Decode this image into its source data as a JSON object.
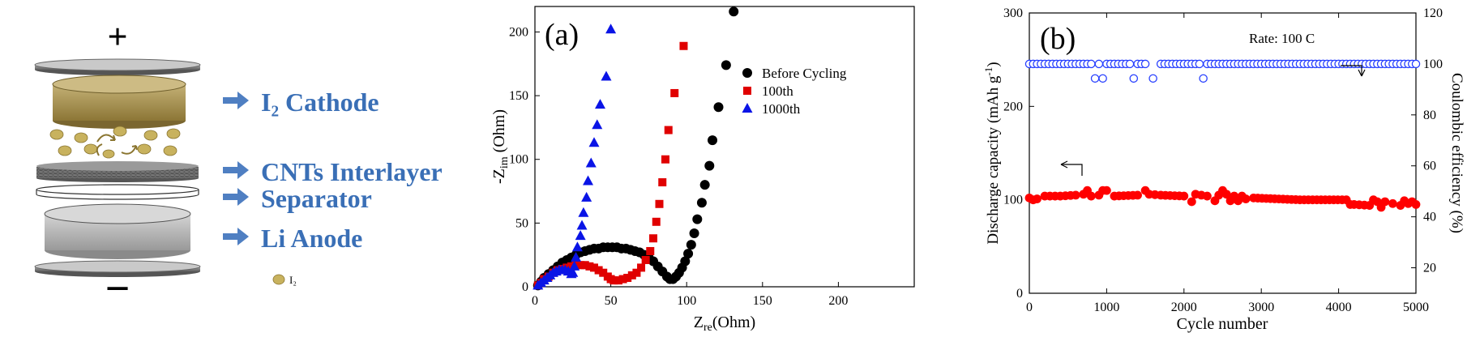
{
  "schematic": {
    "plus": "+",
    "minus": "−",
    "labels": {
      "cathode": "I₂ Cathode",
      "interlayer": "CNTs Interlayer",
      "separator": "Separator",
      "anode": "Li  Anode"
    },
    "legend_i2": "I₂",
    "colors": {
      "label": "#3a6fb6",
      "arrow": "#4f7fc2",
      "cathode": "#a08c4a",
      "iodine": "#c8b25e",
      "anode": "#b5b5b5"
    }
  },
  "chart_data": [
    {
      "type": "scatter",
      "panel_label": "(a)",
      "xlabel": "Z_re(Ohm)",
      "ylabel": "-Z_im (Ohm)",
      "xlim": [
        0,
        250
      ],
      "ylim": [
        0,
        220
      ],
      "xticks": [
        0,
        50,
        100,
        150,
        200
      ],
      "yticks": [
        0,
        50,
        100,
        150,
        200
      ],
      "legend_position": "top-right",
      "series": [
        {
          "name": "Before Cycling",
          "color": "#000000",
          "marker": "circle",
          "points": [
            [
              2,
              1
            ],
            [
              4,
              4
            ],
            [
              6,
              7
            ],
            [
              9,
              10
            ],
            [
              12,
              13
            ],
            [
              15,
              16
            ],
            [
              18,
              19
            ],
            [
              21,
              21
            ],
            [
              24,
              23
            ],
            [
              27,
              25
            ],
            [
              30,
              27
            ],
            [
              33,
              28
            ],
            [
              36,
              29
            ],
            [
              39,
              30
            ],
            [
              42,
              30
            ],
            [
              45,
              31
            ],
            [
              48,
              31
            ],
            [
              51,
              31
            ],
            [
              54,
              31
            ],
            [
              57,
              30
            ],
            [
              60,
              30
            ],
            [
              63,
              29
            ],
            [
              66,
              28
            ],
            [
              69,
              27
            ],
            [
              72,
              25
            ],
            [
              75,
              23
            ],
            [
              78,
              20
            ],
            [
              81,
              16
            ],
            [
              84,
              12
            ],
            [
              87,
              8
            ],
            [
              89,
              6
            ],
            [
              91,
              6
            ],
            [
              93,
              8
            ],
            [
              95,
              11
            ],
            [
              97,
              15
            ],
            [
              99,
              20
            ],
            [
              101,
              26
            ],
            [
              103,
              33
            ],
            [
              105,
              42
            ],
            [
              107,
              53
            ],
            [
              110,
              66
            ],
            [
              112,
              80
            ],
            [
              115,
              95
            ],
            [
              117,
              115
            ],
            [
              121,
              141
            ],
            [
              126,
              174
            ],
            [
              131,
              216
            ]
          ]
        },
        {
          "name": "100th",
          "color": "#e00000",
          "marker": "square",
          "points": [
            [
              2,
              1
            ],
            [
              4,
              3
            ],
            [
              6,
              6
            ],
            [
              9,
              8
            ],
            [
              12,
              11
            ],
            [
              15,
              13
            ],
            [
              18,
              14
            ],
            [
              21,
              15
            ],
            [
              24,
              16
            ],
            [
              27,
              17
            ],
            [
              30,
              17
            ],
            [
              33,
              17
            ],
            [
              36,
              16
            ],
            [
              39,
              15
            ],
            [
              42,
              13
            ],
            [
              45,
              11
            ],
            [
              48,
              8
            ],
            [
              50,
              6
            ],
            [
              52,
              5
            ],
            [
              55,
              5
            ],
            [
              58,
              6
            ],
            [
              61,
              7
            ],
            [
              64,
              9
            ],
            [
              67,
              11
            ],
            [
              70,
              15
            ],
            [
              73,
              21
            ],
            [
              76,
              28
            ],
            [
              78,
              38
            ],
            [
              80,
              51
            ],
            [
              82,
              65
            ],
            [
              84,
              82
            ],
            [
              86,
              100
            ],
            [
              88,
              123
            ],
            [
              92,
              152
            ],
            [
              98,
              189
            ]
          ]
        },
        {
          "name": "1000th",
          "color": "#0a14e6",
          "marker": "triangle",
          "points": [
            [
              2,
              1
            ],
            [
              4,
              3
            ],
            [
              6,
              5
            ],
            [
              8,
              7
            ],
            [
              10,
              9
            ],
            [
              12,
              11
            ],
            [
              14,
              12
            ],
            [
              16,
              13
            ],
            [
              18,
              13
            ],
            [
              20,
              13
            ],
            [
              22,
              12
            ],
            [
              24,
              10
            ],
            [
              25,
              11
            ],
            [
              26,
              16
            ],
            [
              27,
              23
            ],
            [
              28,
              31
            ],
            [
              30,
              40
            ],
            [
              31,
              48
            ],
            [
              32,
              58
            ],
            [
              34,
              70
            ],
            [
              35,
              83
            ],
            [
              37,
              97
            ],
            [
              39,
              113
            ],
            [
              41,
              127
            ],
            [
              43,
              143
            ],
            [
              47,
              165
            ],
            [
              50,
              202
            ]
          ]
        }
      ]
    },
    {
      "type": "scatter",
      "panel_label": "(b)",
      "annotation": "Rate: 100 C",
      "xlabel": "Cycle number",
      "ylabel_left": "Discharge capacity (mAh g⁻¹)",
      "ylabel_right": "Coulombic efficiency (%)",
      "xlim": [
        0,
        5000
      ],
      "ylim_left": [
        0,
        300
      ],
      "ylim_right": [
        10,
        120
      ],
      "xticks": [
        0,
        1000,
        2000,
        3000,
        4000,
        5000
      ],
      "yticks_left": [
        0,
        100,
        200,
        300
      ],
      "yticks_right": [
        20,
        40,
        60,
        80,
        100,
        120
      ],
      "series": [
        {
          "name": "Discharge capacity",
          "axis": "left",
          "color": "#ff0000",
          "marker": "circle",
          "points": [
            [
              0,
              102
            ],
            [
              50,
              100
            ],
            [
              100,
              101
            ],
            [
              200,
              104
            ],
            [
              400,
              104
            ],
            [
              600,
              105
            ],
            [
              700,
              106
            ],
            [
              750,
              110
            ],
            [
              800,
              104
            ],
            [
              900,
              105
            ],
            [
              950,
              110
            ],
            [
              1000,
              110
            ],
            [
              1100,
              104
            ],
            [
              1400,
              105
            ],
            [
              1500,
              110
            ],
            [
              1550,
              106
            ],
            [
              1700,
              105
            ],
            [
              2000,
              104
            ],
            [
              2100,
              98
            ],
            [
              2150,
              106
            ],
            [
              2300,
              104
            ],
            [
              2400,
              99
            ],
            [
              2450,
              105
            ],
            [
              2500,
              110
            ],
            [
              2550,
              106
            ],
            [
              2600,
              99
            ],
            [
              2650,
              104
            ],
            [
              2700,
              99
            ],
            [
              2750,
              104
            ],
            [
              2800,
              101
            ],
            [
              2900,
              102
            ],
            [
              3500,
              100
            ],
            [
              4100,
              100
            ],
            [
              4150,
              95
            ],
            [
              4200,
              95
            ],
            [
              4400,
              94
            ],
            [
              4450,
              100
            ],
            [
              4500,
              98
            ],
            [
              4550,
              92
            ],
            [
              4600,
              98
            ],
            [
              4700,
              96
            ],
            [
              4800,
              94
            ],
            [
              4850,
              99
            ],
            [
              4900,
              96
            ],
            [
              4950,
              98
            ],
            [
              5000,
              95
            ]
          ]
        },
        {
          "name": "Coulombic efficiency",
          "axis": "right",
          "color": "#2840ff",
          "marker": "circle-open",
          "points": [
            [
              0,
              100
            ],
            [
              100,
              100
            ],
            [
              200,
              100
            ],
            [
              300,
              100
            ],
            [
              400,
              100
            ],
            [
              500,
              100
            ],
            [
              600,
              100
            ],
            [
              700,
              100
            ],
            [
              800,
              100
            ],
            [
              850,
              94.3
            ],
            [
              900,
              100
            ],
            [
              950,
              94.3
            ],
            [
              1000,
              100
            ],
            [
              1100,
              100
            ],
            [
              1200,
              100
            ],
            [
              1300,
              100
            ],
            [
              1350,
              94.3
            ],
            [
              1400,
              100
            ],
            [
              1500,
              100
            ],
            [
              1600,
              94.3
            ],
            [
              1700,
              100
            ],
            [
              1800,
              100
            ],
            [
              1900,
              100
            ],
            [
              2000,
              100
            ],
            [
              2100,
              100
            ],
            [
              2200,
              100
            ],
            [
              2250,
              94.3
            ],
            [
              2300,
              100
            ],
            [
              2400,
              100
            ],
            [
              2500,
              100
            ],
            [
              2600,
              100
            ],
            [
              2700,
              100
            ],
            [
              2800,
              100
            ],
            [
              2900,
              100
            ],
            [
              3000,
              100
            ],
            [
              3100,
              100
            ],
            [
              3200,
              100
            ],
            [
              3300,
              100
            ],
            [
              3400,
              100
            ],
            [
              3500,
              100
            ],
            [
              3600,
              100
            ],
            [
              3700,
              100
            ],
            [
              3800,
              100
            ],
            [
              3900,
              100
            ],
            [
              4000,
              100
            ],
            [
              4100,
              100
            ],
            [
              4200,
              100
            ],
            [
              4300,
              100
            ],
            [
              4400,
              100
            ],
            [
              4500,
              100
            ],
            [
              4600,
              100
            ],
            [
              4700,
              100
            ],
            [
              4800,
              100
            ],
            [
              4900,
              100
            ],
            [
              5000,
              100
            ]
          ]
        }
      ]
    }
  ]
}
